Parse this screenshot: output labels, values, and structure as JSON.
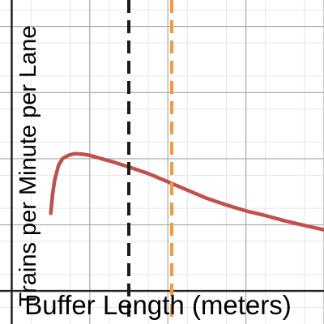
{
  "chart_data": {
    "type": "line",
    "title": "",
    "xlabel": "Buffer Length (meters)",
    "ylabel": "Trains per Minute per Lane",
    "grid": true,
    "xlim": [
      -0.3,
      8.0
    ],
    "ylim": [
      -1.0,
      8.8
    ],
    "series": [
      {
        "name": "",
        "color": "#c0504d",
        "x": [
          1.0,
          1.05,
          1.1,
          1.2,
          1.3,
          1.45,
          1.6,
          1.8,
          2.0,
          2.3,
          2.6,
          3.0,
          3.5,
          4.0,
          4.5,
          5.0,
          5.5,
          6.0,
          6.5,
          7.0,
          7.5,
          8.0
        ],
        "y": [
          2.35,
          2.95,
          3.35,
          3.8,
          4.0,
          4.1,
          4.15,
          4.14,
          4.1,
          4.0,
          3.9,
          3.75,
          3.55,
          3.3,
          3.05,
          2.8,
          2.6,
          2.42,
          2.28,
          2.12,
          1.98,
          1.85
        ]
      }
    ],
    "vlines": [
      {
        "x": 3.0,
        "color": "#1a1a1a",
        "style": "dashed"
      },
      {
        "x": 4.1,
        "color": "#f39a3a",
        "style": "dashed"
      }
    ]
  }
}
